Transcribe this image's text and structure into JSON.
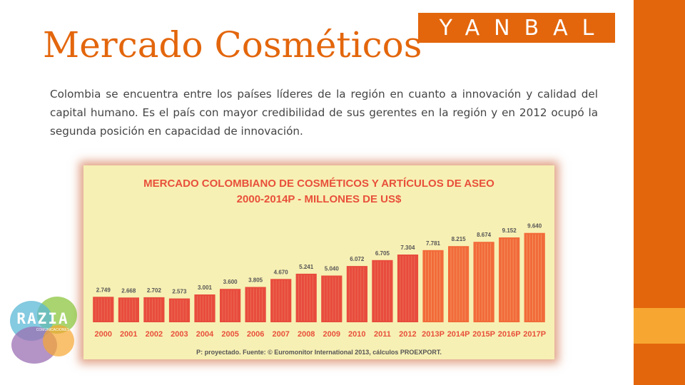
{
  "slide": {
    "title": "Mercado Cosméticos",
    "body": "Colombia se encuentra entre los países líderes de la región en cuanto a innovación y calidad del capital humano. Es el país con mayor credibilidad de sus gerentes en la región y en 2012 ocupó la segunda posición en capacidad de innovación."
  },
  "logos": {
    "yanbal": "YANBAL",
    "razia": "RAZIA",
    "razia_sub": "COMUNICACIONES"
  },
  "colors": {
    "accent": "#e3660c",
    "accent_light": "#f7a731",
    "chart_bg": "#f7f0b4",
    "bar_actual": "#e84c3d",
    "bar_projected": "#f26b3a",
    "chart_text": "#e8503a"
  },
  "chart_data": {
    "type": "bar",
    "title": "MERCADO COLOMBIANO DE COSMÉTICOS Y ARTÍCULOS DE ASEO",
    "subtitle": "2000-2014P - MILLONES DE US$",
    "categories": [
      "2000",
      "2001",
      "2002",
      "2003",
      "2004",
      "2005",
      "2006",
      "2007",
      "2008",
      "2009",
      "2010",
      "2011",
      "2012",
      "2013P",
      "2014P",
      "2015P",
      "2016P",
      "2017P"
    ],
    "values": [
      2749,
      2668,
      2702,
      2573,
      3001,
      3600,
      3805,
      4670,
      5241,
      5040,
      6072,
      6705,
      7304,
      7781,
      8215,
      8674,
      9152,
      9640
    ],
    "labels": [
      "2.749",
      "2.668",
      "2.702",
      "2.573",
      "3.001",
      "3.600",
      "3.805",
      "4.670",
      "5.241",
      "5.040",
      "6.072",
      "6.705",
      "7.304",
      "7.781",
      "8.215",
      "8.674",
      "9.152",
      "9.640"
    ],
    "projected_from_index": 13,
    "footnote": "P: proyectado. Fuente: © Euromonitor International 2013, cálculos PROEXPORT.",
    "ylim": [
      0,
      10000
    ],
    "grid": false,
    "legend": "none"
  }
}
